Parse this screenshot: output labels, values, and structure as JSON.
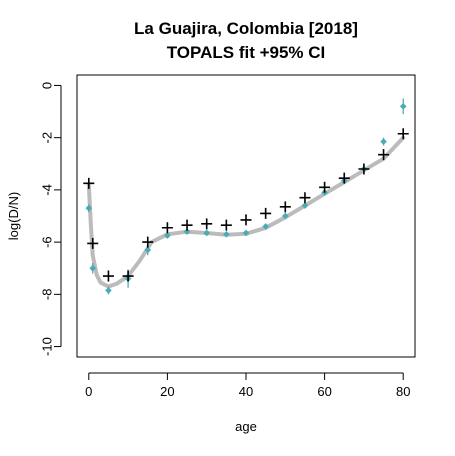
{
  "chart_data": {
    "type": "scatter",
    "title": "La Guajira, Colombia [2018]",
    "subtitle": "TOPALS fit +95% CI",
    "xlabel": "age",
    "ylabel": "log(D/N)",
    "xlim": [
      -3,
      83
    ],
    "ylim": [
      -10.4,
      0.4
    ],
    "x_ticks": [
      0,
      20,
      40,
      60,
      80
    ],
    "y_ticks": [
      0,
      -2,
      -4,
      -6,
      -8,
      -10
    ],
    "grid": false,
    "series": [
      {
        "kind": "points",
        "marker": "plus",
        "color": "#000000",
        "x": [
          0,
          1,
          5,
          10,
          15,
          20,
          25,
          30,
          35,
          40,
          45,
          50,
          55,
          60,
          65,
          70,
          75,
          80
        ],
        "y": [
          -3.75,
          -6.05,
          -7.3,
          -7.3,
          -6.0,
          -5.45,
          -5.35,
          -5.3,
          -5.35,
          -5.15,
          -4.9,
          -4.65,
          -4.3,
          -3.9,
          -3.55,
          -3.2,
          -2.65,
          -1.85
        ]
      },
      {
        "kind": "points",
        "marker": "diamond",
        "color": "#4aaab5",
        "x": [
          0,
          1,
          5,
          10,
          15,
          20,
          25,
          30,
          35,
          40,
          45,
          50,
          55,
          60,
          65,
          70,
          75,
          80
        ],
        "y": [
          -4.7,
          -7.0,
          -7.85,
          -7.4,
          -6.3,
          -5.75,
          -5.6,
          -5.65,
          -5.7,
          -5.65,
          -5.4,
          -5.0,
          -4.6,
          -4.1,
          -3.65,
          -3.2,
          -2.15,
          -0.8
        ],
        "ci_low": [
          -4.85,
          -7.2,
          -8.0,
          -7.75,
          -6.5,
          -5.85,
          -5.68,
          -5.73,
          -5.78,
          -5.73,
          -5.5,
          -5.1,
          -4.7,
          -4.2,
          -3.75,
          -3.3,
          -2.3,
          -1.1
        ],
        "ci_high": [
          -4.55,
          -6.8,
          -7.7,
          -7.05,
          -6.1,
          -5.65,
          -5.52,
          -5.57,
          -5.62,
          -5.57,
          -5.3,
          -4.9,
          -4.5,
          -4.0,
          -3.55,
          -3.1,
          -2.0,
          -0.5
        ]
      },
      {
        "kind": "line",
        "color": "#bbbbbb",
        "x": [
          0,
          0.5,
          1,
          2,
          3,
          5,
          7,
          10,
          13,
          16,
          20,
          25,
          30,
          35,
          40,
          45,
          50,
          55,
          60,
          65,
          70,
          75,
          80
        ],
        "y": [
          -3.8,
          -5.3,
          -6.5,
          -7.25,
          -7.55,
          -7.7,
          -7.6,
          -7.3,
          -6.7,
          -6.0,
          -5.7,
          -5.6,
          -5.65,
          -5.72,
          -5.68,
          -5.45,
          -5.05,
          -4.6,
          -4.15,
          -3.7,
          -3.25,
          -2.8,
          -2.0
        ]
      }
    ]
  }
}
